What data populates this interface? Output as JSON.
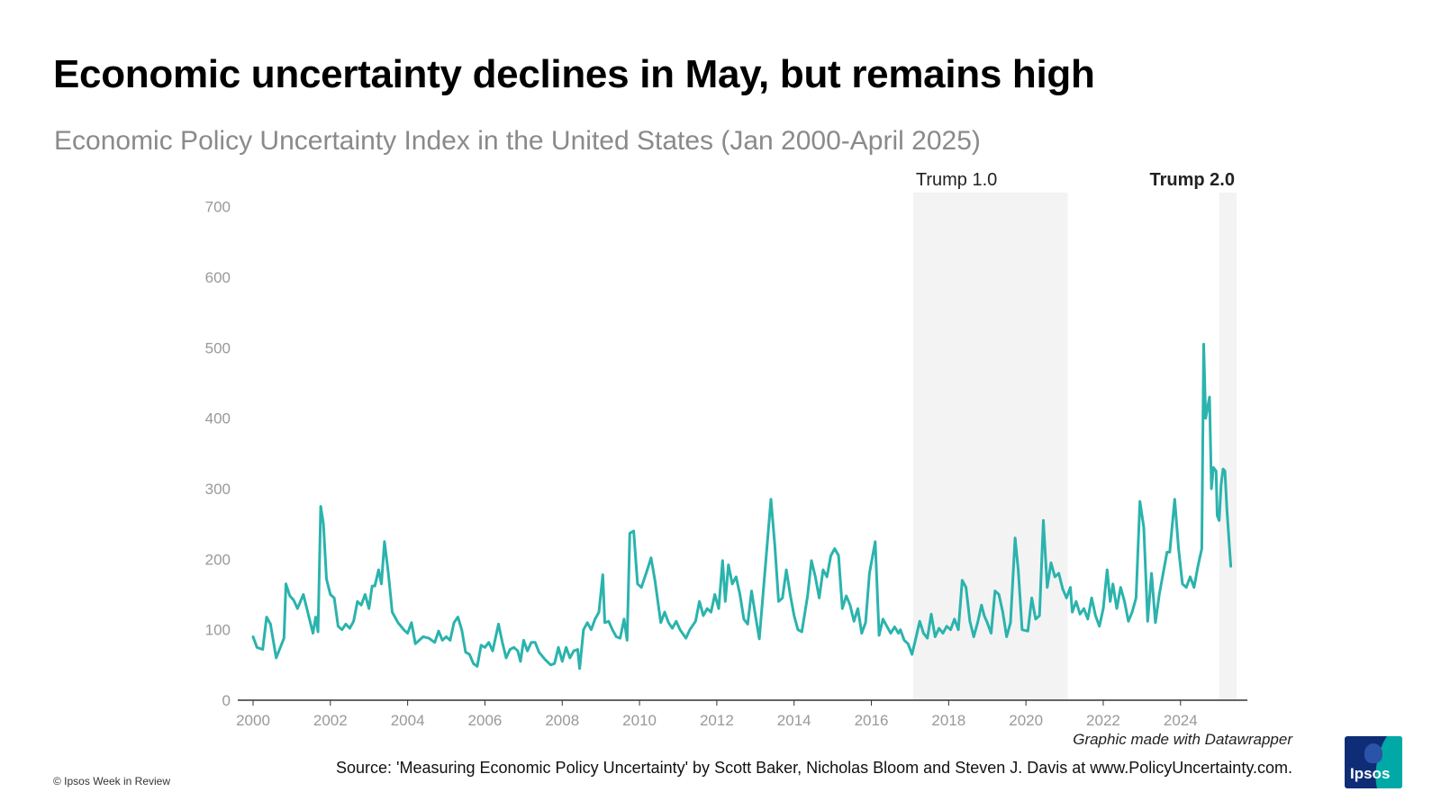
{
  "header": {
    "title": "Economic uncertainty declines in May, but remains high",
    "subtitle": "Economic Policy Uncertainty Index in the United States (Jan 2000-April 2025)"
  },
  "footer": {
    "credit": "Graphic made with Datawrapper",
    "source": "Source: 'Measuring Economic Policy Uncertainty' by Scott Baker, Nicholas Bloom and Steven J. Davis at www.PolicyUncertainty.com.",
    "copyright": "© Ipsos Week in Review",
    "logo_text": "Ipsos"
  },
  "colors": {
    "line": "#2bb3ad",
    "shade": "#f3f3f3",
    "tick": "#999999",
    "axis": "#333333",
    "logo_bg": "#0f2d77",
    "logo_accent": "#00a9a6"
  },
  "chart_data": {
    "type": "line",
    "title": "Economic uncertainty declines in May, but remains high",
    "subtitle": "Economic Policy Uncertainty Index in the United States (Jan 2000-April 2025)",
    "xlabel": "",
    "ylabel": "",
    "xlim": [
      2000,
      2025.45
    ],
    "ylim": [
      0,
      720
    ],
    "x_ticks": [
      "2000",
      "2002",
      "2004",
      "2006",
      "2008",
      "2010",
      "2012",
      "2014",
      "2016",
      "2018",
      "2020",
      "2022",
      "2024"
    ],
    "y_ticks": [
      "0",
      "100",
      "200",
      "300",
      "400",
      "500",
      "600",
      "700"
    ],
    "grid": false,
    "shaded_periods": [
      {
        "label": "Trump 1.0",
        "start": 2017.08,
        "end": 2021.08,
        "bold": false
      },
      {
        "label": "Trump 2.0",
        "start": 2025.0,
        "end": 2025.45,
        "bold": true
      }
    ],
    "series": [
      {
        "name": "",
        "points": [
          [
            2000.0,
            90
          ],
          [
            2000.1,
            75
          ],
          [
            2000.25,
            72
          ],
          [
            2000.35,
            118
          ],
          [
            2000.45,
            108
          ],
          [
            2000.6,
            60
          ],
          [
            2000.8,
            88
          ],
          [
            2000.85,
            165
          ],
          [
            2000.95,
            148
          ],
          [
            2001.05,
            142
          ],
          [
            2001.15,
            130
          ],
          [
            2001.3,
            150
          ],
          [
            2001.4,
            128
          ],
          [
            2001.55,
            95
          ],
          [
            2001.62,
            118
          ],
          [
            2001.68,
            97
          ],
          [
            2001.75,
            275
          ],
          [
            2001.82,
            250
          ],
          [
            2001.9,
            172
          ],
          [
            2002.0,
            150
          ],
          [
            2002.1,
            145
          ],
          [
            2002.2,
            105
          ],
          [
            2002.3,
            100
          ],
          [
            2002.4,
            108
          ],
          [
            2002.5,
            102
          ],
          [
            2002.6,
            112
          ],
          [
            2002.7,
            140
          ],
          [
            2002.8,
            135
          ],
          [
            2002.9,
            150
          ],
          [
            2003.0,
            130
          ],
          [
            2003.08,
            162
          ],
          [
            2003.15,
            162
          ],
          [
            2003.25,
            185
          ],
          [
            2003.32,
            165
          ],
          [
            2003.4,
            225
          ],
          [
            2003.5,
            180
          ],
          [
            2003.6,
            125
          ],
          [
            2003.75,
            110
          ],
          [
            2003.9,
            100
          ],
          [
            2004.0,
            95
          ],
          [
            2004.1,
            110
          ],
          [
            2004.2,
            80
          ],
          [
            2004.3,
            85
          ],
          [
            2004.4,
            90
          ],
          [
            2004.55,
            88
          ],
          [
            2004.7,
            82
          ],
          [
            2004.8,
            98
          ],
          [
            2004.9,
            85
          ],
          [
            2005.0,
            90
          ],
          [
            2005.1,
            85
          ],
          [
            2005.2,
            110
          ],
          [
            2005.3,
            118
          ],
          [
            2005.4,
            100
          ],
          [
            2005.5,
            68
          ],
          [
            2005.6,
            65
          ],
          [
            2005.7,
            52
          ],
          [
            2005.8,
            48
          ],
          [
            2005.9,
            78
          ],
          [
            2006.0,
            75
          ],
          [
            2006.1,
            82
          ],
          [
            2006.2,
            70
          ],
          [
            2006.35,
            108
          ],
          [
            2006.45,
            82
          ],
          [
            2006.55,
            60
          ],
          [
            2006.65,
            72
          ],
          [
            2006.75,
            75
          ],
          [
            2006.85,
            70
          ],
          [
            2006.92,
            55
          ],
          [
            2007.0,
            85
          ],
          [
            2007.1,
            70
          ],
          [
            2007.2,
            82
          ],
          [
            2007.3,
            82
          ],
          [
            2007.4,
            68
          ],
          [
            2007.55,
            58
          ],
          [
            2007.7,
            50
          ],
          [
            2007.8,
            52
          ],
          [
            2007.9,
            75
          ],
          [
            2008.0,
            55
          ],
          [
            2008.1,
            75
          ],
          [
            2008.2,
            60
          ],
          [
            2008.3,
            70
          ],
          [
            2008.4,
            72
          ],
          [
            2008.45,
            45
          ],
          [
            2008.55,
            100
          ],
          [
            2008.65,
            110
          ],
          [
            2008.75,
            100
          ],
          [
            2008.85,
            115
          ],
          [
            2008.95,
            125
          ],
          [
            2009.05,
            178
          ],
          [
            2009.1,
            110
          ],
          [
            2009.2,
            112
          ],
          [
            2009.3,
            100
          ],
          [
            2009.4,
            90
          ],
          [
            2009.5,
            88
          ],
          [
            2009.6,
            115
          ],
          [
            2009.68,
            85
          ],
          [
            2009.75,
            237
          ],
          [
            2009.85,
            240
          ],
          [
            2009.95,
            165
          ],
          [
            2010.05,
            160
          ],
          [
            2010.2,
            185
          ],
          [
            2010.3,
            202
          ],
          [
            2010.4,
            170
          ],
          [
            2010.55,
            110
          ],
          [
            2010.65,
            125
          ],
          [
            2010.75,
            110
          ],
          [
            2010.85,
            102
          ],
          [
            2010.95,
            112
          ],
          [
            2011.05,
            100
          ],
          [
            2011.2,
            88
          ],
          [
            2011.3,
            100
          ],
          [
            2011.45,
            112
          ],
          [
            2011.55,
            140
          ],
          [
            2011.65,
            120
          ],
          [
            2011.75,
            130
          ],
          [
            2011.85,
            125
          ],
          [
            2011.95,
            150
          ],
          [
            2012.05,
            130
          ],
          [
            2012.15,
            198
          ],
          [
            2012.22,
            140
          ],
          [
            2012.3,
            192
          ],
          [
            2012.4,
            165
          ],
          [
            2012.5,
            175
          ],
          [
            2012.6,
            150
          ],
          [
            2012.7,
            115
          ],
          [
            2012.8,
            108
          ],
          [
            2012.9,
            155
          ],
          [
            2013.0,
            120
          ],
          [
            2013.1,
            87
          ],
          [
            2013.25,
            185
          ],
          [
            2013.4,
            285
          ],
          [
            2013.5,
            220
          ],
          [
            2013.6,
            140
          ],
          [
            2013.7,
            145
          ],
          [
            2013.8,
            185
          ],
          [
            2013.9,
            150
          ],
          [
            2014.0,
            120
          ],
          [
            2014.1,
            100
          ],
          [
            2014.2,
            97
          ],
          [
            2014.35,
            148
          ],
          [
            2014.45,
            198
          ],
          [
            2014.55,
            175
          ],
          [
            2014.65,
            145
          ],
          [
            2014.75,
            185
          ],
          [
            2014.85,
            175
          ],
          [
            2014.95,
            205
          ],
          [
            2015.05,
            215
          ],
          [
            2015.15,
            205
          ],
          [
            2015.25,
            130
          ],
          [
            2015.35,
            148
          ],
          [
            2015.45,
            135
          ],
          [
            2015.55,
            112
          ],
          [
            2015.65,
            130
          ],
          [
            2015.75,
            95
          ],
          [
            2015.85,
            110
          ],
          [
            2015.95,
            180
          ],
          [
            2016.1,
            225
          ],
          [
            2016.2,
            92
          ],
          [
            2016.3,
            115
          ],
          [
            2016.4,
            105
          ],
          [
            2016.5,
            95
          ],
          [
            2016.6,
            104
          ],
          [
            2016.7,
            95
          ],
          [
            2016.75,
            100
          ],
          [
            2016.85,
            85
          ],
          [
            2016.95,
            80
          ],
          [
            2017.05,
            65
          ],
          [
            2017.15,
            88
          ],
          [
            2017.25,
            112
          ],
          [
            2017.35,
            95
          ],
          [
            2017.45,
            88
          ],
          [
            2017.55,
            122
          ],
          [
            2017.65,
            90
          ],
          [
            2017.75,
            102
          ],
          [
            2017.85,
            95
          ],
          [
            2017.95,
            105
          ],
          [
            2018.05,
            100
          ],
          [
            2018.15,
            115
          ],
          [
            2018.25,
            100
          ],
          [
            2018.35,
            170
          ],
          [
            2018.45,
            160
          ],
          [
            2018.55,
            112
          ],
          [
            2018.65,
            90
          ],
          [
            2018.75,
            110
          ],
          [
            2018.85,
            135
          ],
          [
            2018.92,
            120
          ],
          [
            2019.0,
            110
          ],
          [
            2019.1,
            95
          ],
          [
            2019.2,
            155
          ],
          [
            2019.3,
            150
          ],
          [
            2019.4,
            125
          ],
          [
            2019.5,
            90
          ],
          [
            2019.6,
            110
          ],
          [
            2019.72,
            230
          ],
          [
            2019.8,
            185
          ],
          [
            2019.9,
            100
          ],
          [
            2020.05,
            98
          ],
          [
            2020.15,
            145
          ],
          [
            2020.25,
            115
          ],
          [
            2020.35,
            120
          ],
          [
            2020.45,
            255
          ],
          [
            2020.55,
            160
          ],
          [
            2020.65,
            195
          ],
          [
            2020.75,
            175
          ],
          [
            2020.85,
            180
          ],
          [
            2020.95,
            158
          ],
          [
            2021.05,
            145
          ],
          [
            2021.15,
            160
          ],
          [
            2021.2,
            125
          ],
          [
            2021.3,
            140
          ],
          [
            2021.4,
            122
          ],
          [
            2021.5,
            130
          ],
          [
            2021.6,
            115
          ],
          [
            2021.7,
            145
          ],
          [
            2021.8,
            120
          ],
          [
            2021.9,
            105
          ],
          [
            2022.0,
            130
          ],
          [
            2022.1,
            185
          ],
          [
            2022.18,
            140
          ],
          [
            2022.25,
            165
          ],
          [
            2022.35,
            130
          ],
          [
            2022.45,
            160
          ],
          [
            2022.55,
            140
          ],
          [
            2022.65,
            112
          ],
          [
            2022.75,
            125
          ],
          [
            2022.85,
            145
          ],
          [
            2022.95,
            282
          ],
          [
            2023.05,
            245
          ],
          [
            2023.15,
            112
          ],
          [
            2023.25,
            180
          ],
          [
            2023.35,
            110
          ],
          [
            2023.45,
            150
          ],
          [
            2023.55,
            180
          ],
          [
            2023.65,
            210
          ],
          [
            2023.72,
            210
          ],
          [
            2023.85,
            285
          ],
          [
            2023.95,
            215
          ],
          [
            2024.05,
            165
          ],
          [
            2024.15,
            160
          ],
          [
            2024.25,
            175
          ],
          [
            2024.35,
            160
          ],
          [
            2024.45,
            190
          ],
          [
            2024.55,
            215
          ],
          [
            2024.6,
            505
          ],
          [
            2024.65,
            400
          ],
          [
            2024.75,
            430
          ],
          [
            2024.8,
            300
          ],
          [
            2024.85,
            330
          ],
          [
            2024.92,
            325
          ],
          [
            2024.95,
            262
          ],
          [
            2025.0,
            255
          ],
          [
            2025.05,
            305
          ],
          [
            2025.1,
            328
          ],
          [
            2025.15,
            325
          ],
          [
            2025.2,
            270
          ],
          [
            2025.3,
            190
          ]
        ]
      }
    ]
  }
}
